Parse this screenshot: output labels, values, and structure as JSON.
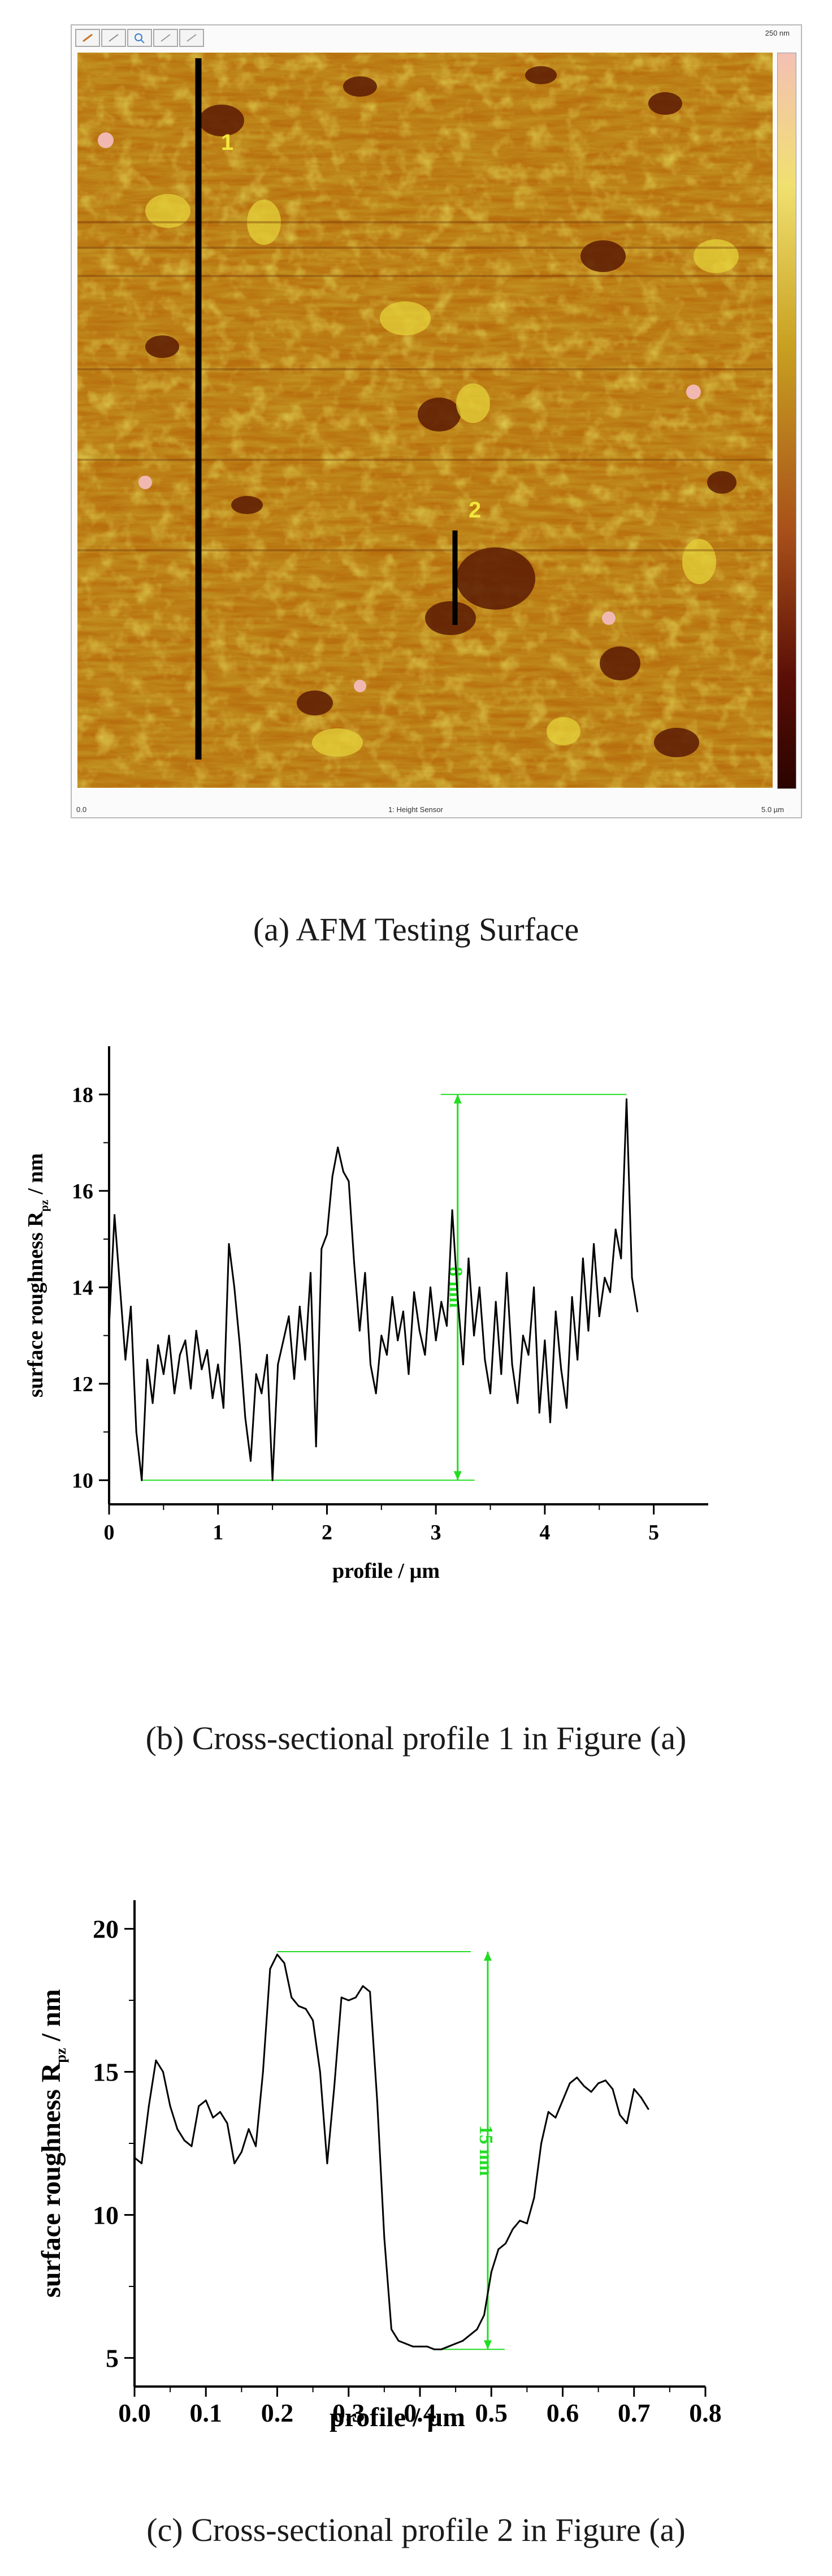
{
  "afm": {
    "scale_top": "250 nm",
    "scale_bottom": "0.0",
    "channel": "1: Height Sensor",
    "size": "5.0 µm",
    "marker_1": "1",
    "marker_2": "2",
    "caption": "(a) AFM Testing Surface"
  },
  "chart_data": [
    {
      "type": "line",
      "xlabel": "profile   / µm",
      "ylabel": "surface roughness  R",
      "ylabel_sub": "pz",
      "ylabel_unit": " / nm",
      "xlim": [
        0,
        5.5
      ],
      "ylim": [
        9.5,
        19
      ],
      "xticks": [
        0,
        1,
        2,
        3,
        4,
        5
      ],
      "xtick_labels": [
        "0",
        "1",
        "2",
        "3",
        "4",
        "5"
      ],
      "yticks": [
        10,
        12,
        14,
        16,
        18
      ],
      "ytick_labels": [
        "10",
        "12",
        "14",
        "16",
        "18"
      ],
      "annotation": "8 nm",
      "annotation_range": [
        10,
        18
      ],
      "annotation_x": 3.2,
      "annotation_color": "#22dd22",
      "series": [
        {
          "x": [
            0,
            0.05,
            0.1,
            0.15,
            0.2,
            0.25,
            0.3,
            0.35,
            0.4,
            0.45,
            0.5,
            0.55,
            0.6,
            0.65,
            0.7,
            0.75,
            0.8,
            0.85,
            0.9,
            0.95,
            1.0,
            1.05,
            1.1,
            1.15,
            1.2,
            1.25,
            1.3,
            1.35,
            1.4,
            1.45,
            1.5,
            1.55,
            1.6,
            1.65,
            1.7,
            1.75,
            1.8,
            1.85,
            1.9,
            1.95,
            2.0,
            2.05,
            2.1,
            2.15,
            2.2,
            2.25,
            2.3,
            2.35,
            2.4,
            2.45,
            2.5,
            2.55,
            2.6,
            2.65,
            2.7,
            2.75,
            2.8,
            2.85,
            2.9,
            2.95,
            3.0,
            3.05,
            3.1,
            3.15,
            3.2,
            3.25,
            3.3,
            3.35,
            3.4,
            3.45,
            3.5,
            3.55,
            3.6,
            3.65,
            3.7,
            3.75,
            3.8,
            3.85,
            3.9,
            3.95,
            4.0,
            4.05,
            4.1,
            4.15,
            4.2,
            4.25,
            4.3,
            4.35,
            4.4,
            4.45,
            4.5,
            4.55,
            4.6,
            4.65,
            4.7,
            4.75,
            4.8,
            4.85
          ],
          "y": [
            13.2,
            15.5,
            14.0,
            12.5,
            13.6,
            11.0,
            10.0,
            12.5,
            11.6,
            12.8,
            12.2,
            13.0,
            11.8,
            12.6,
            12.9,
            11.9,
            13.1,
            12.3,
            12.7,
            11.7,
            12.4,
            11.5,
            14.9,
            14.0,
            12.8,
            11.3,
            10.4,
            12.2,
            11.8,
            12.6,
            10.0,
            12.4,
            12.9,
            13.4,
            12.1,
            13.6,
            12.5,
            14.3,
            10.7,
            14.8,
            15.1,
            16.3,
            16.9,
            16.4,
            16.2,
            14.5,
            13.1,
            14.3,
            12.4,
            11.8,
            13.0,
            12.6,
            13.8,
            12.9,
            13.5,
            12.2,
            13.9,
            13.1,
            12.6,
            14.0,
            12.9,
            13.7,
            13.2,
            15.6,
            13.8,
            12.4,
            14.6,
            13.0,
            14.0,
            12.5,
            11.8,
            13.7,
            12.2,
            14.3,
            12.4,
            11.6,
            13.0,
            12.6,
            14.0,
            11.4,
            12.9,
            11.2,
            13.5,
            12.3,
            11.5,
            13.8,
            12.5,
            14.6,
            13.1,
            14.9,
            13.4,
            14.2,
            13.9,
            15.2,
            14.6,
            17.9,
            14.2,
            13.5
          ]
        }
      ],
      "caption": "(b) Cross-sectional profile 1 in Figure (a)"
    },
    {
      "type": "line",
      "xlabel": "profile   / µm",
      "ylabel": "surface roughness  R",
      "ylabel_sub": "pz",
      "ylabel_unit": " / nm",
      "xlim": [
        0,
        0.8
      ],
      "ylim": [
        4,
        21
      ],
      "xticks": [
        0,
        0.1,
        0.2,
        0.3,
        0.4,
        0.5,
        0.6,
        0.7,
        0.8
      ],
      "xtick_labels": [
        "0.0",
        "0.1",
        "0.2",
        "0.3",
        "0.4",
        "0.5",
        "0.6",
        "0.7",
        "0.8"
      ],
      "yticks": [
        5,
        10,
        15,
        20
      ],
      "ytick_labels": [
        "5",
        "10",
        "15",
        "20"
      ],
      "annotation": "15 nm",
      "annotation_range": [
        5.3,
        19.2
      ],
      "annotation_x": 0.495,
      "annotation_color": "#22dd22",
      "series": [
        {
          "x": [
            0.0,
            0.01,
            0.02,
            0.03,
            0.04,
            0.05,
            0.06,
            0.07,
            0.08,
            0.09,
            0.1,
            0.11,
            0.12,
            0.13,
            0.14,
            0.15,
            0.16,
            0.17,
            0.18,
            0.19,
            0.2,
            0.21,
            0.22,
            0.23,
            0.24,
            0.25,
            0.26,
            0.27,
            0.28,
            0.29,
            0.3,
            0.31,
            0.32,
            0.33,
            0.34,
            0.35,
            0.36,
            0.37,
            0.38,
            0.39,
            0.4,
            0.41,
            0.42,
            0.43,
            0.44,
            0.45,
            0.46,
            0.47,
            0.48,
            0.49,
            0.5,
            0.51,
            0.52,
            0.53,
            0.54,
            0.55,
            0.56,
            0.57,
            0.58,
            0.59,
            0.6,
            0.61,
            0.62,
            0.63,
            0.64,
            0.65,
            0.66,
            0.67,
            0.68,
            0.69,
            0.7,
            0.71,
            0.72
          ],
          "y": [
            12.0,
            11.8,
            13.8,
            15.4,
            15.0,
            13.8,
            13.0,
            12.6,
            12.4,
            13.8,
            14.0,
            13.4,
            13.6,
            13.2,
            11.8,
            12.2,
            13.0,
            12.4,
            15.0,
            18.6,
            19.1,
            18.8,
            17.6,
            17.3,
            17.2,
            16.8,
            15.0,
            11.8,
            14.5,
            17.6,
            17.5,
            17.6,
            18.0,
            17.8,
            14.0,
            9.2,
            6.0,
            5.6,
            5.5,
            5.4,
            5.4,
            5.4,
            5.3,
            5.3,
            5.4,
            5.5,
            5.6,
            5.8,
            6.0,
            6.5,
            8.0,
            8.8,
            9.0,
            9.5,
            9.8,
            9.7,
            10.6,
            12.5,
            13.6,
            13.4,
            14.0,
            14.6,
            14.8,
            14.5,
            14.3,
            14.6,
            14.7,
            14.4,
            13.5,
            13.2,
            14.4,
            14.1,
            13.7
          ]
        }
      ],
      "caption": "(c) Cross-sectional profile 2 in Figure (a)"
    }
  ]
}
